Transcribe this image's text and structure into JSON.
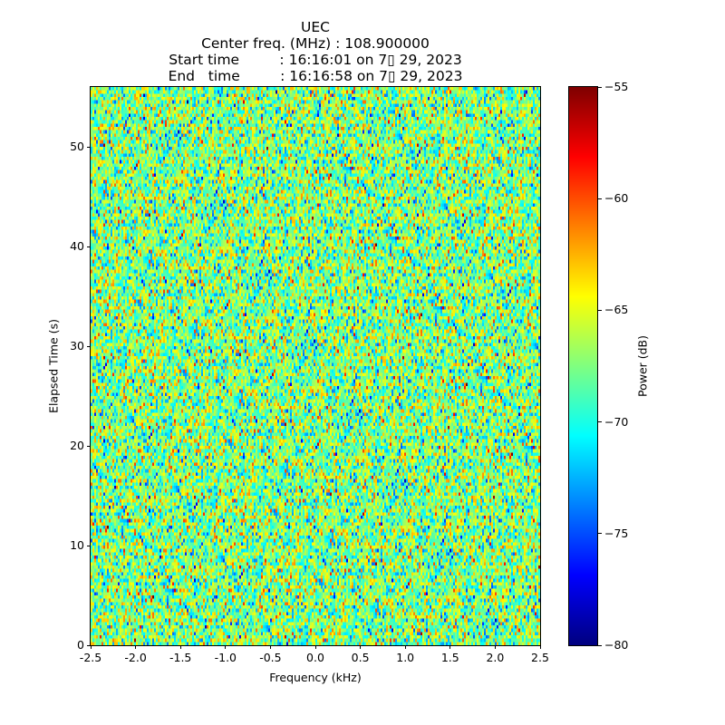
{
  "chart_data": {
    "type": "heatmap",
    "title_lines": [
      "UEC",
      "Center freq. (MHz) : 108.900000",
      "Start time         : 16:16:01 on 7▯ 29, 2023",
      "End   time         : 16:16:58 on 7▯ 29, 2023"
    ],
    "xlabel": "Frequency (kHz)",
    "ylabel": "Elapsed Time (s)",
    "xlim": [
      -2.5,
      2.5
    ],
    "ylim": [
      0,
      56
    ],
    "xticks": [
      "-2.5",
      "-2.0",
      "-1.5",
      "-1.0",
      "-0.5",
      "0.0",
      "0.5",
      "1.0",
      "1.5",
      "2.0",
      "2.5"
    ],
    "xtick_values": [
      -2.5,
      -2.0,
      -1.5,
      -1.0,
      -0.5,
      0.0,
      0.5,
      1.0,
      1.5,
      2.0,
      2.5
    ],
    "yticks": [
      "0",
      "10",
      "20",
      "30",
      "40",
      "50"
    ],
    "ytick_values": [
      0,
      10,
      20,
      30,
      40,
      50
    ],
    "colorbar": {
      "label": "Power (dB)",
      "range": [
        -80,
        -55
      ],
      "colormap": "jet",
      "ticks": [
        "−55",
        "−60",
        "−65",
        "−70",
        "−75",
        "−80"
      ],
      "tick_values": [
        -55,
        -60,
        -65,
        -70,
        -75,
        -80
      ]
    },
    "values_summary": {
      "approx_mean_db": -67.5,
      "approx_std_db": 3.2,
      "pattern": "noise"
    }
  }
}
